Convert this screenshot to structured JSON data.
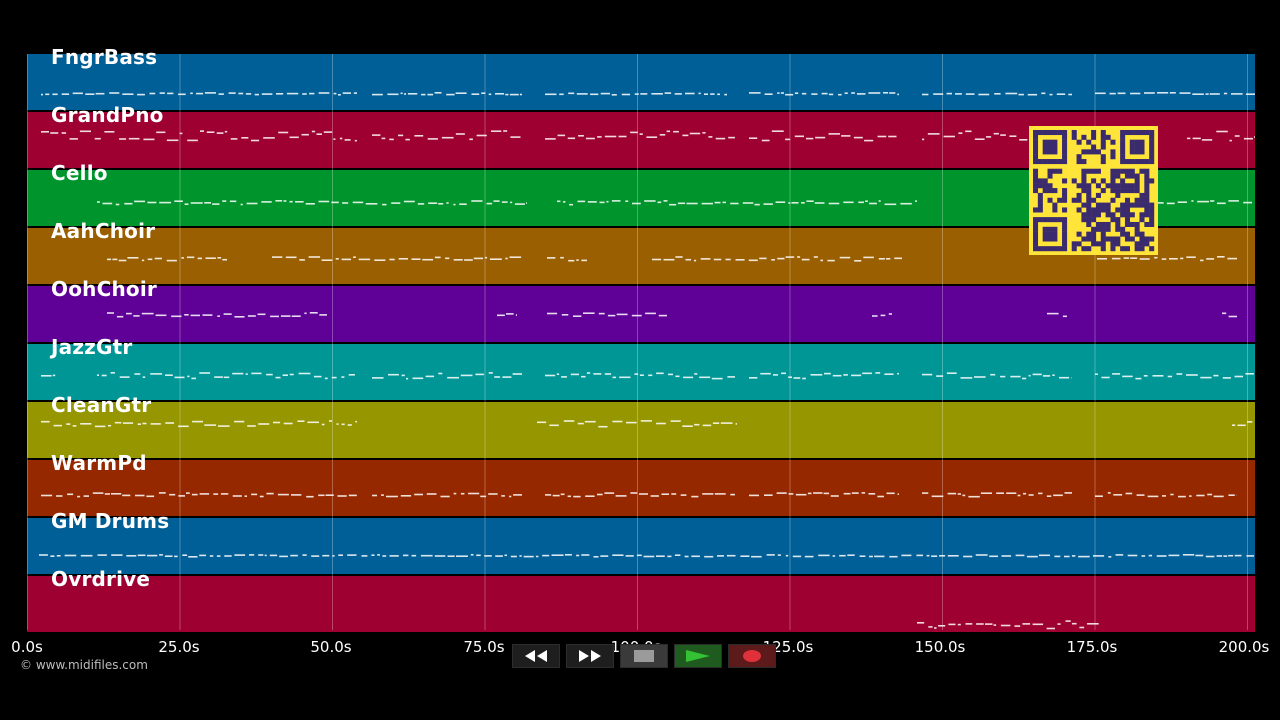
{
  "app": "MIDI piano-roll visualizer",
  "tracks": [
    {
      "name": "FngrBass",
      "color": "#005f96"
    },
    {
      "name": "GrandPno",
      "color": "#9e0031"
    },
    {
      "name": "Cello",
      "color": "#00952c"
    },
    {
      "name": "AahChoir",
      "color": "#9a5f00"
    },
    {
      "name": "OohChoir",
      "color": "#5f0096"
    },
    {
      "name": "JazzGtr",
      "color": "#009696"
    },
    {
      "name": "CleanGtr",
      "color": "#969600"
    },
    {
      "name": "WarmPd",
      "color": "#962800"
    },
    {
      "name": "GM Drums",
      "color": "#005f96"
    },
    {
      "name": "Ovrdrive",
      "color": "#9e0031"
    }
  ],
  "time_axis": {
    "range_s": [
      0,
      200
    ],
    "ticks": [
      {
        "value": 0,
        "label": "0.0s"
      },
      {
        "value": 25,
        "label": "25.0s"
      },
      {
        "value": 50,
        "label": "50.0s"
      },
      {
        "value": 75,
        "label": "75.0s"
      },
      {
        "value": 100,
        "label": "100.0s"
      },
      {
        "value": 125,
        "label": "125.0s"
      },
      {
        "value": 150,
        "label": "150.0s"
      },
      {
        "value": 175,
        "label": "175.0s"
      },
      {
        "value": 200,
        "label": "200.0s"
      }
    ]
  },
  "copyright": "© www.midifiles.com",
  "transport": [
    {
      "name": "rewind-button",
      "icon": "rewind-icon"
    },
    {
      "name": "fast-forward-button",
      "icon": "fast-forward-icon"
    },
    {
      "name": "stop-button",
      "icon": "stop-icon",
      "color": "#9a9a9a"
    },
    {
      "name": "play-button",
      "icon": "play-icon",
      "color": "#34c234"
    },
    {
      "name": "record-button",
      "icon": "record-icon",
      "color": "#e0303a"
    }
  ],
  "qr_code": {
    "color": "#3a2a6e",
    "background": "#ffe43a"
  }
}
